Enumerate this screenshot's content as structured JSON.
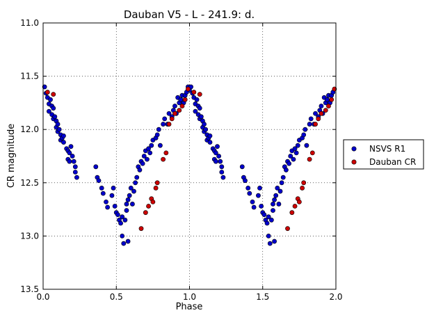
{
  "chart_data": {
    "type": "scatter",
    "title": "Dauban V5 - L - 241.9: d.",
    "xlabel": "Phase",
    "ylabel": "CR magnitude",
    "xlim": [
      0.0,
      2.0
    ],
    "ylim": [
      11.0,
      13.5
    ],
    "y_inverted": true,
    "grid": true,
    "legend_position": "right",
    "x_ticks": [
      "0.0",
      "0.5",
      "1.0",
      "1.5",
      "2.0"
    ],
    "y_ticks": [
      "11.0",
      "11.5",
      "12.0",
      "12.5",
      "13.0",
      "13.5"
    ],
    "series": [
      {
        "name": "NSVS R1",
        "color": "#0000cc",
        "points": [
          [
            0.01,
            11.6
          ],
          [
            0.02,
            11.66
          ],
          [
            0.03,
            11.7
          ],
          [
            0.04,
            11.76
          ],
          [
            0.04,
            11.83
          ],
          [
            0.05,
            11.72
          ],
          [
            0.06,
            11.78
          ],
          [
            0.06,
            11.86
          ],
          [
            0.07,
            11.8
          ],
          [
            0.07,
            11.9
          ],
          [
            0.08,
            11.88
          ],
          [
            0.09,
            11.92
          ],
          [
            0.09,
            11.98
          ],
          [
            0.1,
            11.95
          ],
          [
            0.1,
            12.02
          ],
          [
            0.11,
            12.0
          ],
          [
            0.12,
            12.05
          ],
          [
            0.12,
            12.1
          ],
          [
            0.13,
            12.08
          ],
          [
            0.14,
            12.12
          ],
          [
            0.14,
            12.06
          ],
          [
            0.16,
            12.18
          ],
          [
            0.17,
            12.2
          ],
          [
            0.17,
            12.28
          ],
          [
            0.18,
            12.22
          ],
          [
            0.18,
            12.3
          ],
          [
            0.19,
            12.16
          ],
          [
            0.2,
            12.25
          ],
          [
            0.21,
            12.3
          ],
          [
            0.22,
            12.35
          ],
          [
            0.22,
            12.4
          ],
          [
            0.23,
            12.45
          ],
          [
            0.36,
            12.35
          ],
          [
            0.37,
            12.45
          ],
          [
            0.38,
            12.48
          ],
          [
            0.4,
            12.55
          ],
          [
            0.41,
            12.6
          ],
          [
            0.43,
            12.68
          ],
          [
            0.44,
            12.73
          ],
          [
            0.47,
            12.62
          ],
          [
            0.48,
            12.55
          ],
          [
            0.49,
            12.72
          ],
          [
            0.5,
            12.78
          ],
          [
            0.51,
            12.8
          ],
          [
            0.52,
            12.85
          ],
          [
            0.53,
            12.88
          ],
          [
            0.54,
            12.82
          ],
          [
            0.54,
            13.0
          ],
          [
            0.55,
            13.07
          ],
          [
            0.56,
            12.85
          ],
          [
            0.57,
            12.76
          ],
          [
            0.57,
            12.7
          ],
          [
            0.58,
            12.66
          ],
          [
            0.58,
            13.05
          ],
          [
            0.59,
            12.62
          ],
          [
            0.6,
            12.55
          ],
          [
            0.61,
            12.7
          ],
          [
            0.62,
            12.58
          ],
          [
            0.63,
            12.5
          ],
          [
            0.64,
            12.45
          ],
          [
            0.65,
            12.35
          ],
          [
            0.66,
            12.38
          ],
          [
            0.67,
            12.3
          ],
          [
            0.68,
            12.32
          ],
          [
            0.69,
            12.25
          ],
          [
            0.7,
            12.2
          ],
          [
            0.71,
            12.28
          ],
          [
            0.72,
            12.18
          ],
          [
            0.73,
            12.22
          ],
          [
            0.74,
            12.15
          ],
          [
            0.75,
            12.1
          ],
          [
            0.77,
            12.08
          ],
          [
            0.78,
            12.05
          ],
          [
            0.79,
            12.0
          ],
          [
            0.8,
            12.15
          ],
          [
            0.82,
            11.95
          ],
          [
            0.83,
            11.9
          ],
          [
            0.85,
            11.95
          ],
          [
            0.86,
            11.85
          ],
          [
            0.88,
            11.88
          ],
          [
            0.89,
            11.82
          ],
          [
            0.9,
            11.78
          ],
          [
            0.91,
            11.85
          ],
          [
            0.92,
            11.7
          ],
          [
            0.93,
            11.75
          ],
          [
            0.94,
            11.72
          ],
          [
            0.95,
            11.68
          ],
          [
            0.96,
            11.75
          ],
          [
            0.97,
            11.68
          ],
          [
            0.98,
            11.65
          ],
          [
            0.99,
            11.6
          ],
          [
            1.0,
            11.63
          ],
          [
            1.01,
            11.6
          ],
          [
            1.02,
            11.66
          ],
          [
            1.03,
            11.7
          ],
          [
            1.04,
            11.76
          ],
          [
            1.04,
            11.83
          ],
          [
            1.05,
            11.72
          ],
          [
            1.06,
            11.78
          ],
          [
            1.06,
            11.86
          ],
          [
            1.07,
            11.8
          ],
          [
            1.07,
            11.9
          ],
          [
            1.08,
            11.88
          ],
          [
            1.09,
            11.92
          ],
          [
            1.09,
            11.98
          ],
          [
            1.1,
            11.95
          ],
          [
            1.1,
            12.02
          ],
          [
            1.11,
            12.0
          ],
          [
            1.12,
            12.05
          ],
          [
            1.12,
            12.1
          ],
          [
            1.13,
            12.08
          ],
          [
            1.14,
            12.12
          ],
          [
            1.14,
            12.06
          ],
          [
            1.16,
            12.18
          ],
          [
            1.17,
            12.2
          ],
          [
            1.17,
            12.28
          ],
          [
            1.18,
            12.22
          ],
          [
            1.18,
            12.3
          ],
          [
            1.19,
            12.16
          ],
          [
            1.2,
            12.25
          ],
          [
            1.21,
            12.3
          ],
          [
            1.22,
            12.35
          ],
          [
            1.22,
            12.4
          ],
          [
            1.23,
            12.45
          ],
          [
            1.36,
            12.35
          ],
          [
            1.37,
            12.45
          ],
          [
            1.38,
            12.48
          ],
          [
            1.4,
            12.55
          ],
          [
            1.41,
            12.6
          ],
          [
            1.43,
            12.68
          ],
          [
            1.44,
            12.73
          ],
          [
            1.47,
            12.62
          ],
          [
            1.48,
            12.55
          ],
          [
            1.49,
            12.72
          ],
          [
            1.5,
            12.78
          ],
          [
            1.51,
            12.8
          ],
          [
            1.52,
            12.85
          ],
          [
            1.53,
            12.88
          ],
          [
            1.54,
            12.82
          ],
          [
            1.54,
            13.0
          ],
          [
            1.55,
            13.07
          ],
          [
            1.56,
            12.85
          ],
          [
            1.57,
            12.76
          ],
          [
            1.57,
            12.7
          ],
          [
            1.58,
            12.66
          ],
          [
            1.58,
            13.05
          ],
          [
            1.59,
            12.62
          ],
          [
            1.6,
            12.55
          ],
          [
            1.61,
            12.7
          ],
          [
            1.62,
            12.58
          ],
          [
            1.63,
            12.5
          ],
          [
            1.64,
            12.45
          ],
          [
            1.65,
            12.35
          ],
          [
            1.66,
            12.38
          ],
          [
            1.67,
            12.3
          ],
          [
            1.68,
            12.32
          ],
          [
            1.69,
            12.25
          ],
          [
            1.7,
            12.2
          ],
          [
            1.71,
            12.28
          ],
          [
            1.72,
            12.18
          ],
          [
            1.73,
            12.22
          ],
          [
            1.74,
            12.15
          ],
          [
            1.75,
            12.1
          ],
          [
            1.77,
            12.08
          ],
          [
            1.78,
            12.05
          ],
          [
            1.79,
            12.0
          ],
          [
            1.8,
            12.15
          ],
          [
            1.82,
            11.95
          ],
          [
            1.83,
            11.9
          ],
          [
            1.85,
            11.95
          ],
          [
            1.86,
            11.85
          ],
          [
            1.88,
            11.88
          ],
          [
            1.89,
            11.82
          ],
          [
            1.9,
            11.78
          ],
          [
            1.91,
            11.85
          ],
          [
            1.92,
            11.7
          ],
          [
            1.93,
            11.75
          ],
          [
            1.94,
            11.72
          ],
          [
            1.95,
            11.68
          ],
          [
            1.96,
            11.75
          ],
          [
            1.97,
            11.68
          ],
          [
            1.98,
            11.65
          ]
        ]
      },
      {
        "name": "Dauban CR",
        "color": "#cc0000",
        "points": [
          [
            0.03,
            11.65
          ],
          [
            0.07,
            11.67
          ],
          [
            0.67,
            12.93
          ],
          [
            0.7,
            12.78
          ],
          [
            0.72,
            12.72
          ],
          [
            0.74,
            12.65
          ],
          [
            0.75,
            12.68
          ],
          [
            0.77,
            12.55
          ],
          [
            0.78,
            12.5
          ],
          [
            0.82,
            12.28
          ],
          [
            0.84,
            12.22
          ],
          [
            0.86,
            11.95
          ],
          [
            0.88,
            11.9
          ],
          [
            0.9,
            11.85
          ],
          [
            0.93,
            11.82
          ],
          [
            0.95,
            11.78
          ],
          [
            0.97,
            11.72
          ],
          [
            0.99,
            11.62
          ],
          [
            1.03,
            11.65
          ],
          [
            1.07,
            11.67
          ],
          [
            1.67,
            12.93
          ],
          [
            1.7,
            12.78
          ],
          [
            1.72,
            12.72
          ],
          [
            1.74,
            12.65
          ],
          [
            1.75,
            12.68
          ],
          [
            1.77,
            12.55
          ],
          [
            1.78,
            12.5
          ],
          [
            1.82,
            12.28
          ],
          [
            1.84,
            12.22
          ],
          [
            1.86,
            11.95
          ],
          [
            1.88,
            11.9
          ],
          [
            1.9,
            11.85
          ],
          [
            1.93,
            11.82
          ],
          [
            1.95,
            11.78
          ],
          [
            1.97,
            11.72
          ],
          [
            1.99,
            11.62
          ]
        ]
      }
    ]
  }
}
